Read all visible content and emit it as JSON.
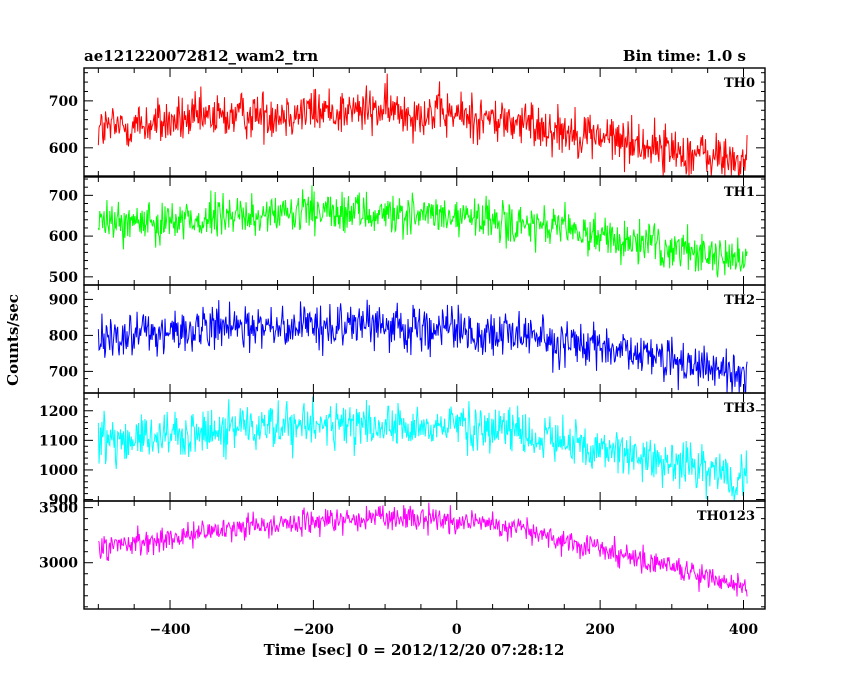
{
  "header": {
    "title": "ae121220072812_wam2_trn",
    "bin_time": "Bin time: 1.0 s"
  },
  "chart_data": {
    "type": "line",
    "xlabel": "Time [sec] 0 = 2012/12/20 07:28:12",
    "ylabel": "Counts/sec",
    "xlim": [
      -520,
      430
    ],
    "x_range_data": [
      -500,
      405
    ],
    "bin_size": 1.0,
    "xticks": [
      -400,
      -200,
      0,
      200,
      400
    ],
    "xtick_labels": [
      "−400",
      "−200",
      "0",
      "200",
      "400"
    ],
    "grid": false,
    "panels": [
      {
        "name": "TH0",
        "color": "#ff0000",
        "ylim": [
          540,
          770
        ],
        "yticks": [
          600,
          700
        ],
        "ytick_labels": [
          "600",
          "700"
        ],
        "trend": [
          [
            -500,
            640
          ],
          [
            -400,
            655
          ],
          [
            -300,
            670
          ],
          [
            -200,
            678
          ],
          [
            -100,
            680
          ],
          [
            0,
            670
          ],
          [
            100,
            650
          ],
          [
            200,
            625
          ],
          [
            300,
            595
          ],
          [
            405,
            570
          ]
        ],
        "noise": 25
      },
      {
        "name": "TH1",
        "color": "#00ff00",
        "ylim": [
          480,
          745
        ],
        "yticks": [
          500,
          600,
          700
        ],
        "ytick_labels": [
          "500",
          "600",
          "700"
        ],
        "trend": [
          [
            -500,
            630
          ],
          [
            -400,
            640
          ],
          [
            -300,
            648
          ],
          [
            -200,
            655
          ],
          [
            -100,
            655
          ],
          [
            0,
            645
          ],
          [
            100,
            625
          ],
          [
            200,
            600
          ],
          [
            300,
            570
          ],
          [
            405,
            540
          ]
        ],
        "noise": 25
      },
      {
        "name": "TH2",
        "color": "#0000ff",
        "ylim": [
          640,
          940
        ],
        "yticks": [
          700,
          800,
          900
        ],
        "ytick_labels": [
          "700",
          "800",
          "900"
        ],
        "trend": [
          [
            -500,
            800
          ],
          [
            -400,
            810
          ],
          [
            -300,
            820
          ],
          [
            -200,
            830
          ],
          [
            -100,
            825
          ],
          [
            0,
            815
          ],
          [
            100,
            795
          ],
          [
            200,
            765
          ],
          [
            300,
            730
          ],
          [
            405,
            690
          ]
        ],
        "noise": 30
      },
      {
        "name": "TH3",
        "color": "#00ffff",
        "ylim": [
          895,
          1260
        ],
        "yticks": [
          900,
          1000,
          1100,
          1200
        ],
        "ytick_labels": [
          "900",
          "1000",
          "1100",
          "1200"
        ],
        "trend": [
          [
            -500,
            1100
          ],
          [
            -400,
            1120
          ],
          [
            -300,
            1140
          ],
          [
            -200,
            1150
          ],
          [
            -100,
            1155
          ],
          [
            0,
            1145
          ],
          [
            100,
            1120
          ],
          [
            200,
            1070
          ],
          [
            300,
            1020
          ],
          [
            405,
            960
          ]
        ],
        "noise": 38
      },
      {
        "name": "TH0123",
        "color": "#ff00ff",
        "ylim": [
          2580,
          3560
        ],
        "yticks": [
          3000,
          3500
        ],
        "ytick_labels": [
          "3000",
          "3500"
        ],
        "trend": [
          [
            -500,
            3150
          ],
          [
            -400,
            3230
          ],
          [
            -300,
            3320
          ],
          [
            -200,
            3380
          ],
          [
            -100,
            3400
          ],
          [
            0,
            3380
          ],
          [
            100,
            3290
          ],
          [
            200,
            3120
          ],
          [
            300,
            2960
          ],
          [
            405,
            2780
          ]
        ],
        "noise": 55
      }
    ]
  }
}
